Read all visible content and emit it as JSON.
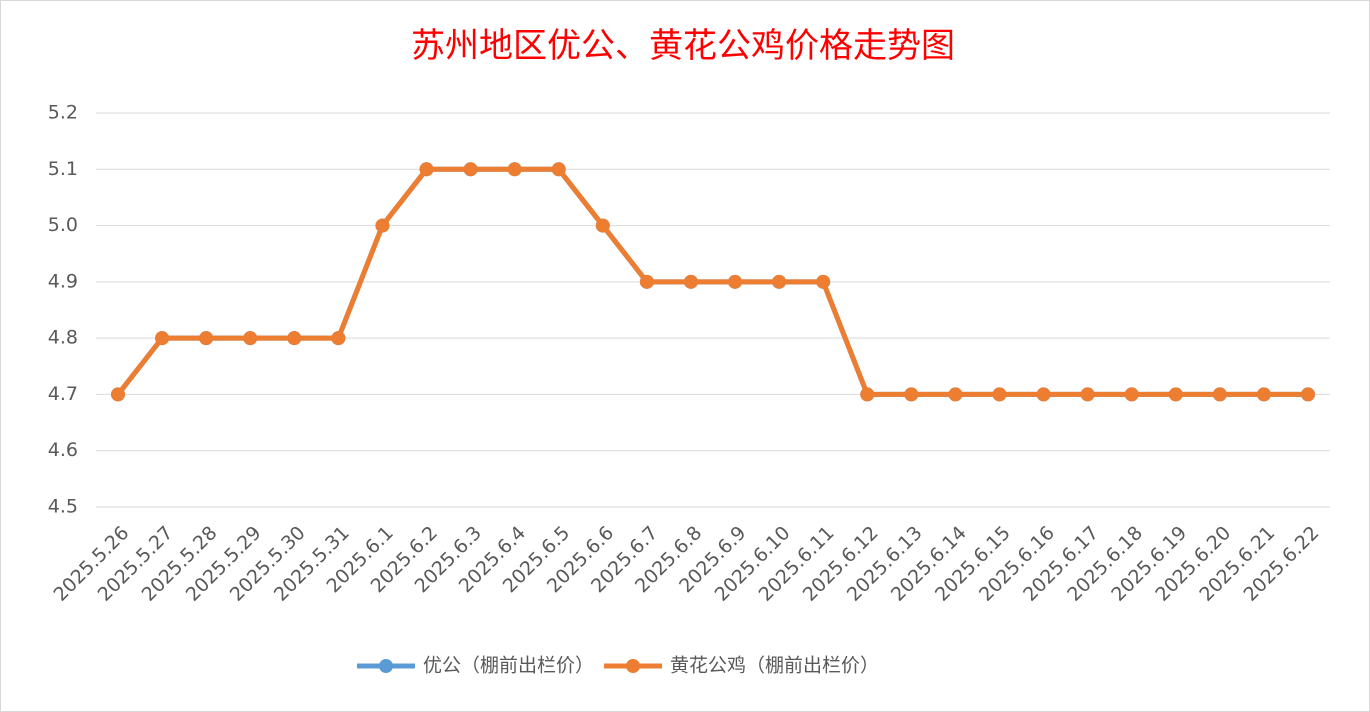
{
  "chart_data": {
    "type": "line",
    "title": "苏州地区优公、黄花公鸡价格走势图",
    "categories": [
      "2025.5.26",
      "2025.5.27",
      "2025.5.28",
      "2025.5.29",
      "2025.5.30",
      "2025.5.31",
      "2025.6.1",
      "2025.6.2",
      "2025.6.3",
      "2025.6.4",
      "2025.6.5",
      "2025.6.6",
      "2025.6.7",
      "2025.6.8",
      "2025.6.9",
      "2025.6.10",
      "2025.6.11",
      "2025.6.12",
      "2025.6.13",
      "2025.6.14",
      "2025.6.15",
      "2025.6.16",
      "2025.6.17",
      "2025.6.18",
      "2025.6.19",
      "2025.6.20",
      "2025.6.21",
      "2025.6.22"
    ],
    "series": [
      {
        "name": "优公（棚前出栏价）",
        "color": "#5b9bd5",
        "values": [
          4.7,
          4.8,
          4.8,
          4.8,
          4.8,
          4.8,
          5.0,
          5.1,
          5.1,
          5.1,
          5.1,
          5.0,
          4.9,
          4.9,
          4.9,
          4.9,
          4.9,
          4.7,
          4.7,
          4.7,
          4.7,
          4.7,
          4.7,
          4.7,
          4.7,
          4.7,
          4.7,
          4.7
        ]
      },
      {
        "name": "黄花公鸡（棚前出栏价）",
        "color": "#ed7d31",
        "values": [
          4.7,
          4.8,
          4.8,
          4.8,
          4.8,
          4.8,
          5.0,
          5.1,
          5.1,
          5.1,
          5.1,
          5.0,
          4.9,
          4.9,
          4.9,
          4.9,
          4.9,
          4.7,
          4.7,
          4.7,
          4.7,
          4.7,
          4.7,
          4.7,
          4.7,
          4.7,
          4.7,
          4.7
        ]
      }
    ],
    "ylim": [
      4.5,
      5.2
    ],
    "yticks": [
      4.5,
      4.6,
      4.7,
      4.8,
      4.9,
      {
        "value": 5,
        "label": "5.0"
      },
      5.1,
      5.2
    ],
    "grid": true,
    "legend": "bottom"
  }
}
